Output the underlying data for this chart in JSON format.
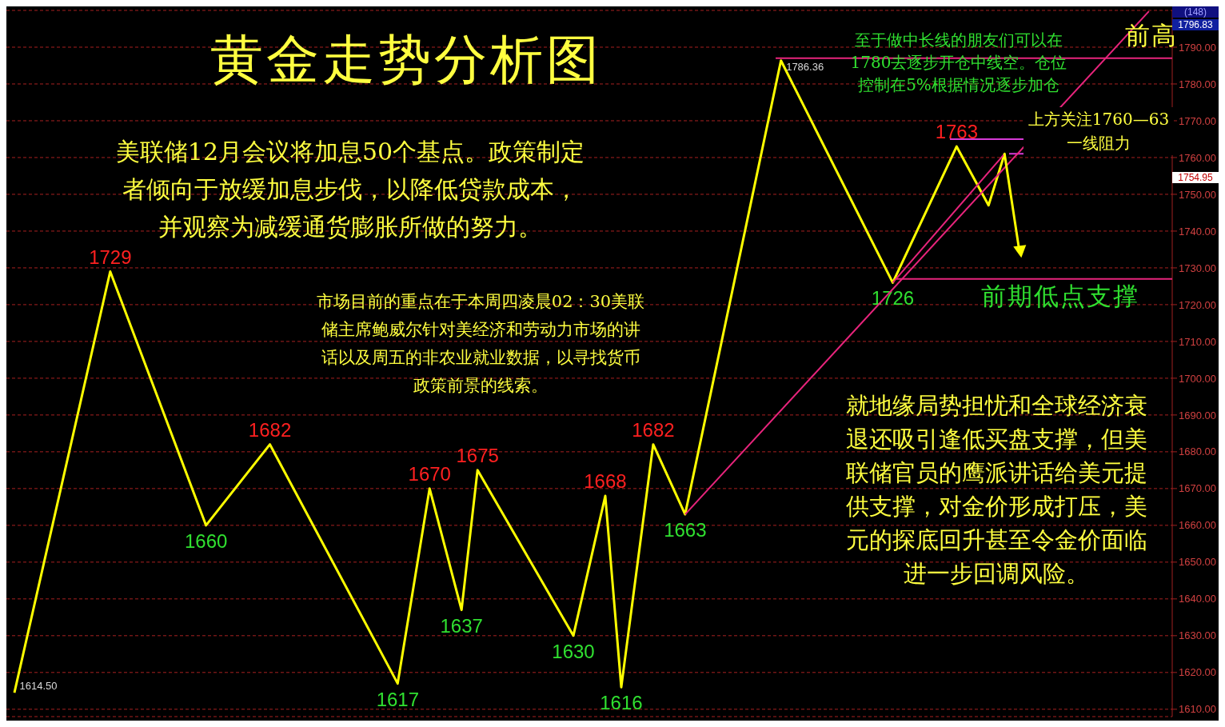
{
  "chart_data": {
    "type": "line",
    "title": "黄金走势分析图",
    "categories": [
      null,
      null,
      null,
      null,
      null,
      null,
      null,
      null,
      null,
      null,
      null,
      null,
      null,
      null,
      null,
      null,
      null,
      null,
      null,
      null,
      null,
      null,
      null,
      null,
      null,
      null,
      null,
      null,
      null,
      null,
      null,
      null,
      null,
      null,
      null,
      null,
      null,
      null,
      null,
      null,
      null,
      null,
      null,
      null,
      null,
      null,
      null,
      null,
      null,
      null,
      null,
      null,
      null,
      null,
      null,
      null,
      null,
      null,
      null,
      null,
      null,
      null,
      null,
      null,
      null,
      null,
      null,
      null,
      null,
      null,
      null,
      null,
      null
    ],
    "ylim": [
      1608,
      1800
    ],
    "yticks": [
      {
        "value": 1610,
        "label": "1610.00"
      },
      {
        "value": 1620,
        "label": "1620.00"
      },
      {
        "value": 1630,
        "label": "1630.00"
      },
      {
        "value": 1640,
        "label": "1640.00"
      },
      {
        "value": 1650,
        "label": "1650.00"
      },
      {
        "value": 1660,
        "label": "1660.00"
      },
      {
        "value": 1670,
        "label": "1670.00"
      },
      {
        "value": 1680,
        "label": "1680.00"
      },
      {
        "value": 1690,
        "label": "1690.00"
      },
      {
        "value": 1700,
        "label": "1700.00"
      },
      {
        "value": 1710,
        "label": "1710.00"
      },
      {
        "value": 1720,
        "label": "1720.00"
      },
      {
        "value": 1730,
        "label": "1730.00"
      },
      {
        "value": 1740,
        "label": "1740.00"
      },
      {
        "value": 1750,
        "label": "1750.00"
      },
      {
        "value": 1760,
        "label": "1760.00"
      },
      {
        "value": 1770,
        "label": "1770.00"
      },
      {
        "value": 1780,
        "label": "1780.00"
      },
      {
        "value": 1790,
        "label": "1790.00"
      }
    ],
    "tick_labels": "y",
    "grid": "y",
    "marker": "none",
    "line_style": "solid",
    "series": [
      {
        "color": "#ffff00",
        "values": [
          1614.5,
          null,
          null,
          null,
          null,
          null,
          1729,
          null,
          null,
          null,
          null,
          null,
          1660,
          null,
          null,
          null,
          1682,
          null,
          null,
          null,
          null,
          null,
          null,
          null,
          1617,
          null,
          1670,
          null,
          1637,
          1675,
          null,
          null,
          null,
          null,
          null,
          1630,
          null,
          1668,
          1616,
          null,
          1682,
          null,
          1663,
          null,
          null,
          null,
          null,
          null,
          1786.36,
          null,
          null,
          null,
          null,
          null,
          null,
          1726,
          null,
          null,
          null,
          1763,
          null,
          1747,
          1761,
          null,
          null,
          null,
          null,
          null,
          null,
          null,
          null,
          null,
          null
        ],
        "value_labels": [
          "1614.50",
          null,
          null,
          null,
          null,
          null,
          "1729",
          null,
          null,
          null,
          null,
          null,
          "1660",
          null,
          null,
          null,
          "1682",
          null,
          null,
          null,
          null,
          null,
          null,
          null,
          "1617",
          null,
          "1670",
          null,
          "1637",
          "1675",
          null,
          null,
          null,
          null,
          null,
          "1630",
          null,
          "1668",
          "1616",
          null,
          "1682",
          null,
          "1663",
          null,
          null,
          null,
          null,
          null,
          "1786.36",
          null,
          null,
          null,
          null,
          null,
          null,
          "1726",
          null,
          null,
          null,
          "1763",
          null,
          null,
          null,
          null,
          null,
          null,
          null,
          null,
          null,
          null,
          null,
          null,
          null
        ]
      }
    ],
    "ref_lines": [
      {
        "axis": "y",
        "value": 1787,
        "label": "前高",
        "color": "#e8247c"
      },
      {
        "axis": "y",
        "value": 1765,
        "color": "#d63ad6"
      },
      {
        "axis": "y",
        "value": 1761,
        "color": "#d63ad6"
      },
      {
        "axis": "y",
        "value": 1727,
        "label": "前期低点支撑",
        "color": "#e8247c"
      }
    ],
    "annotations": [
      "美联储12月会议将加息50个基点。政策制定者倾向于放缓加息步伐，以降低贷款成本，并观察为减缓通货膨胀所做的努力。",
      "市场目前的重点在于本周四凌晨02：30美联储主席鲍威尔针对美经济和劳动力市场的讲话以及周五的非农业就业数据，以寻找货币政策前景的线索。",
      "就地缘局势担忧和全球经济衰退还吸引逢低买盘支撑，但美联储官员的鹰派讲话给美元提供支撑，对金价形成打压，美元的探底回升甚至令金价面临进一步回调风险。",
      "至于做中长线的朋友们可以在1780去逐步开仓中线空。仓位控制在5%根据情况逐步加仓",
      "上方关注1760—63一线阻力",
      "(148)",
      "1796.83",
      "1754.95"
    ]
  }
}
